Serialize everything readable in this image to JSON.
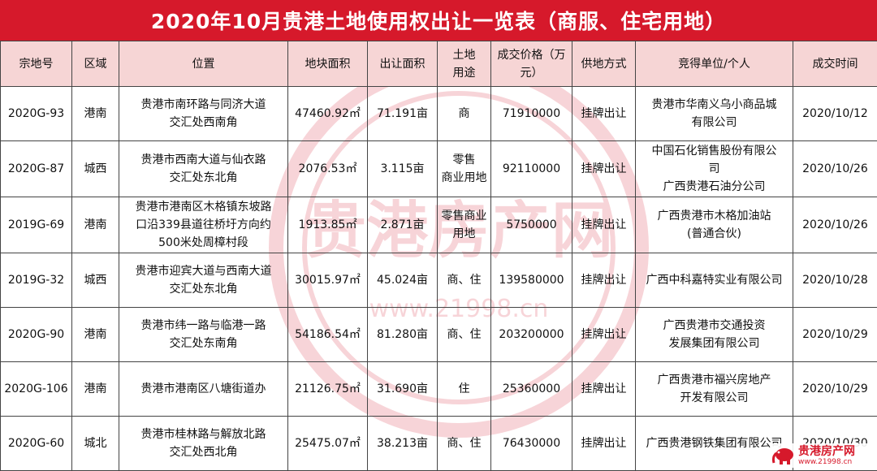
{
  "title": "2020年10月贵港土地使用权出让一览表（商服、住宅用地）",
  "headers": [
    "宗地号",
    "区域",
    "位置",
    "地块面积",
    "出让面积",
    "土地\n用途",
    "成交价格（万\n元）",
    "供地方式",
    "竞得单位/个人",
    "成交时间"
  ],
  "rows": [
    [
      "2020G-93",
      "港南",
      "贵港市南环路与同济大道\n交汇处西南角",
      "47460.92㎡",
      "71.191亩",
      "商",
      "71910000",
      "挂牌出让",
      "贵港市华南义乌小商品城\n有限公司",
      "2020/10/12"
    ],
    [
      "2020G-87",
      "城西",
      "贵港市西南大道与仙衣路\n交汇处东北角",
      "2076.53㎡",
      "3.115亩",
      "零售\n商业用地",
      "92110000",
      "挂牌出让",
      "中国石化销售股份有限公\n司\n广西贵港石油分公司",
      "2020/10/26"
    ],
    [
      "2019G-69",
      "港南",
      "贵港市港南区木格镇东坡路\n口沿339县道往桥圩方向约\n500米处周樟村段",
      "1913.85㎡",
      "2.871亩",
      "零售商业\n用地",
      "5750000",
      "挂牌出让",
      "广西贵港市木格加油站\n(普通合伙)",
      "2020/10/26"
    ],
    [
      "2019G-32",
      "城西",
      "贵港市迎宾大道与西南大道\n交汇处东北角",
      "30015.97㎡",
      "45.024亩",
      "商、住",
      "139580000",
      "挂牌出让",
      "广西中科嘉特实业有限公司",
      "2020/10/28"
    ],
    [
      "2020G-90",
      "港南",
      "贵港市纬一路与临港一路\n交汇处东南角",
      "54186.54㎡",
      "81.280亩",
      "商、住",
      "203200000",
      "挂牌出让",
      "广西贵港市交通投资\n发展集团有限公司",
      "2020/10/29"
    ],
    [
      "2020G-106",
      "港南",
      "贵港市港南区八塘街道办",
      "21126.75㎡",
      "31.690亩",
      "住",
      "25360000",
      "挂牌出让",
      "广西贵港市福兴房地产\n开发有限公司",
      "2020/10/29"
    ],
    [
      "2020G-60",
      "城北",
      "贵港市桂林路与解放北路\n交汇处西北角",
      "25475.07㎡",
      "38.213亩",
      "商、住",
      "76430000",
      "挂牌出让",
      "广西贵港钢铁集团有限公司",
      "2020/10/30"
    ]
  ],
  "watermark": {
    "text": "贵港房产网",
    "url": "www.21998.cn"
  },
  "logo": {
    "text": "贵港房产网",
    "url": "www.21998.cn"
  },
  "colors": {
    "title_bg": "#d6192b",
    "header_bg": "#f6d5d5",
    "watermark": "#d6192b"
  }
}
